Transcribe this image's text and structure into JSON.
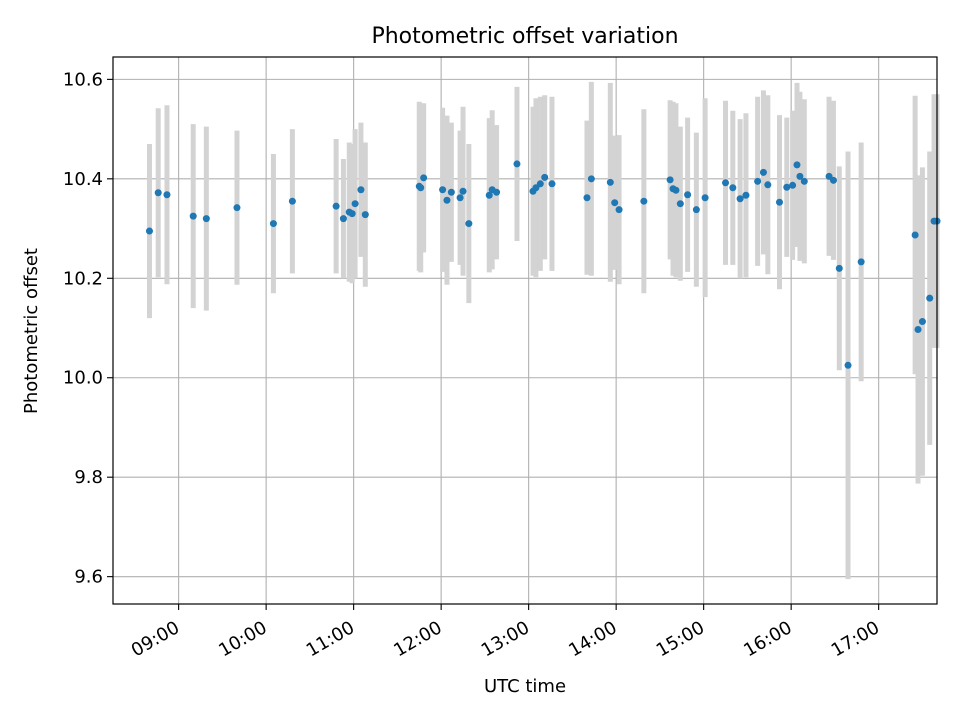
{
  "chart_data": {
    "type": "scatter",
    "title": "Photometric offset variation",
    "xlabel": "UTC time",
    "ylabel": "Photometric offset",
    "xlim": [
      "08:15",
      "17:40"
    ],
    "ylim": [
      9.545,
      10.645
    ],
    "x_ticks": [
      "09:00",
      "10:00",
      "11:00",
      "12:00",
      "13:00",
      "14:00",
      "15:00",
      "16:00",
      "17:00"
    ],
    "y_ticks": [
      "9.6",
      "9.8",
      "10.0",
      "10.2",
      "10.4",
      "10.6"
    ],
    "grid": true,
    "legend": "none",
    "colors": {
      "points": "#1f77b4",
      "errorbars": "#d3d3d3",
      "grid": "#b0b0b0"
    },
    "series": [
      {
        "x": [
          "08:40",
          "08:46",
          "08:52",
          "09:10",
          "09:19",
          "09:40",
          "10:05",
          "10:18",
          "10:48",
          "10:53",
          "10:57",
          "10:59",
          "11:01",
          "11:05",
          "11:08",
          "11:45",
          "11:46",
          "11:48",
          "12:01",
          "12:04",
          "12:07",
          "12:13",
          "12:15",
          "12:19",
          "12:33",
          "12:35",
          "12:38",
          "12:52",
          "13:03",
          "13:05",
          "13:08",
          "13:11",
          "13:16",
          "13:40",
          "13:43",
          "13:56",
          "13:59",
          "14:02",
          "14:19",
          "14:37",
          "14:39",
          "14:41",
          "14:44",
          "14:49",
          "14:55",
          "15:01",
          "15:15",
          "15:20",
          "15:25",
          "15:29",
          "15:37",
          "15:41",
          "15:44",
          "15:52",
          "15:57",
          "16:01",
          "16:04",
          "16:06",
          "16:09",
          "16:26",
          "16:29",
          "16:33",
          "16:39",
          "16:48",
          "17:25",
          "17:27",
          "17:30",
          "17:35",
          "17:38",
          "17:40"
        ],
        "y": [
          10.295,
          10.372,
          10.368,
          10.325,
          10.32,
          10.342,
          10.31,
          10.355,
          10.345,
          10.32,
          10.333,
          10.33,
          10.35,
          10.378,
          10.328,
          10.385,
          10.382,
          10.402,
          10.378,
          10.357,
          10.373,
          10.362,
          10.375,
          10.31,
          10.367,
          10.378,
          10.373,
          10.43,
          10.375,
          10.382,
          10.39,
          10.403,
          10.39,
          10.362,
          10.4,
          10.393,
          10.352,
          10.338,
          10.355,
          10.398,
          10.38,
          10.377,
          10.35,
          10.368,
          10.338,
          10.362,
          10.392,
          10.382,
          10.36,
          10.367,
          10.395,
          10.413,
          10.388,
          10.353,
          10.383,
          10.387,
          10.428,
          10.405,
          10.395,
          10.405,
          10.397,
          10.22,
          10.025,
          10.233,
          10.287,
          10.097,
          10.113,
          10.16,
          10.315,
          10.315
        ],
        "yerr": [
          0.175,
          0.17,
          0.18,
          0.185,
          0.185,
          0.155,
          0.14,
          0.145,
          0.135,
          0.12,
          0.14,
          0.14,
          0.15,
          0.135,
          0.145,
          0.17,
          0.17,
          0.15,
          0.165,
          0.17,
          0.14,
          0.135,
          0.17,
          0.16,
          0.155,
          0.16,
          0.135,
          0.155,
          0.17,
          0.18,
          0.175,
          0.165,
          0.175,
          0.155,
          0.195,
          0.2,
          0.135,
          0.15,
          0.185,
          0.16,
          0.175,
          0.175,
          0.155,
          0.155,
          0.155,
          0.2,
          0.165,
          0.155,
          0.16,
          0.165,
          0.17,
          0.165,
          0.18,
          0.175,
          0.14,
          0.15,
          0.165,
          0.17,
          0.165,
          0.16,
          0.16,
          0.205,
          0.43,
          0.24,
          0.28,
          0.31,
          0.31,
          0.295,
          0.255,
          0.255
        ]
      }
    ]
  }
}
